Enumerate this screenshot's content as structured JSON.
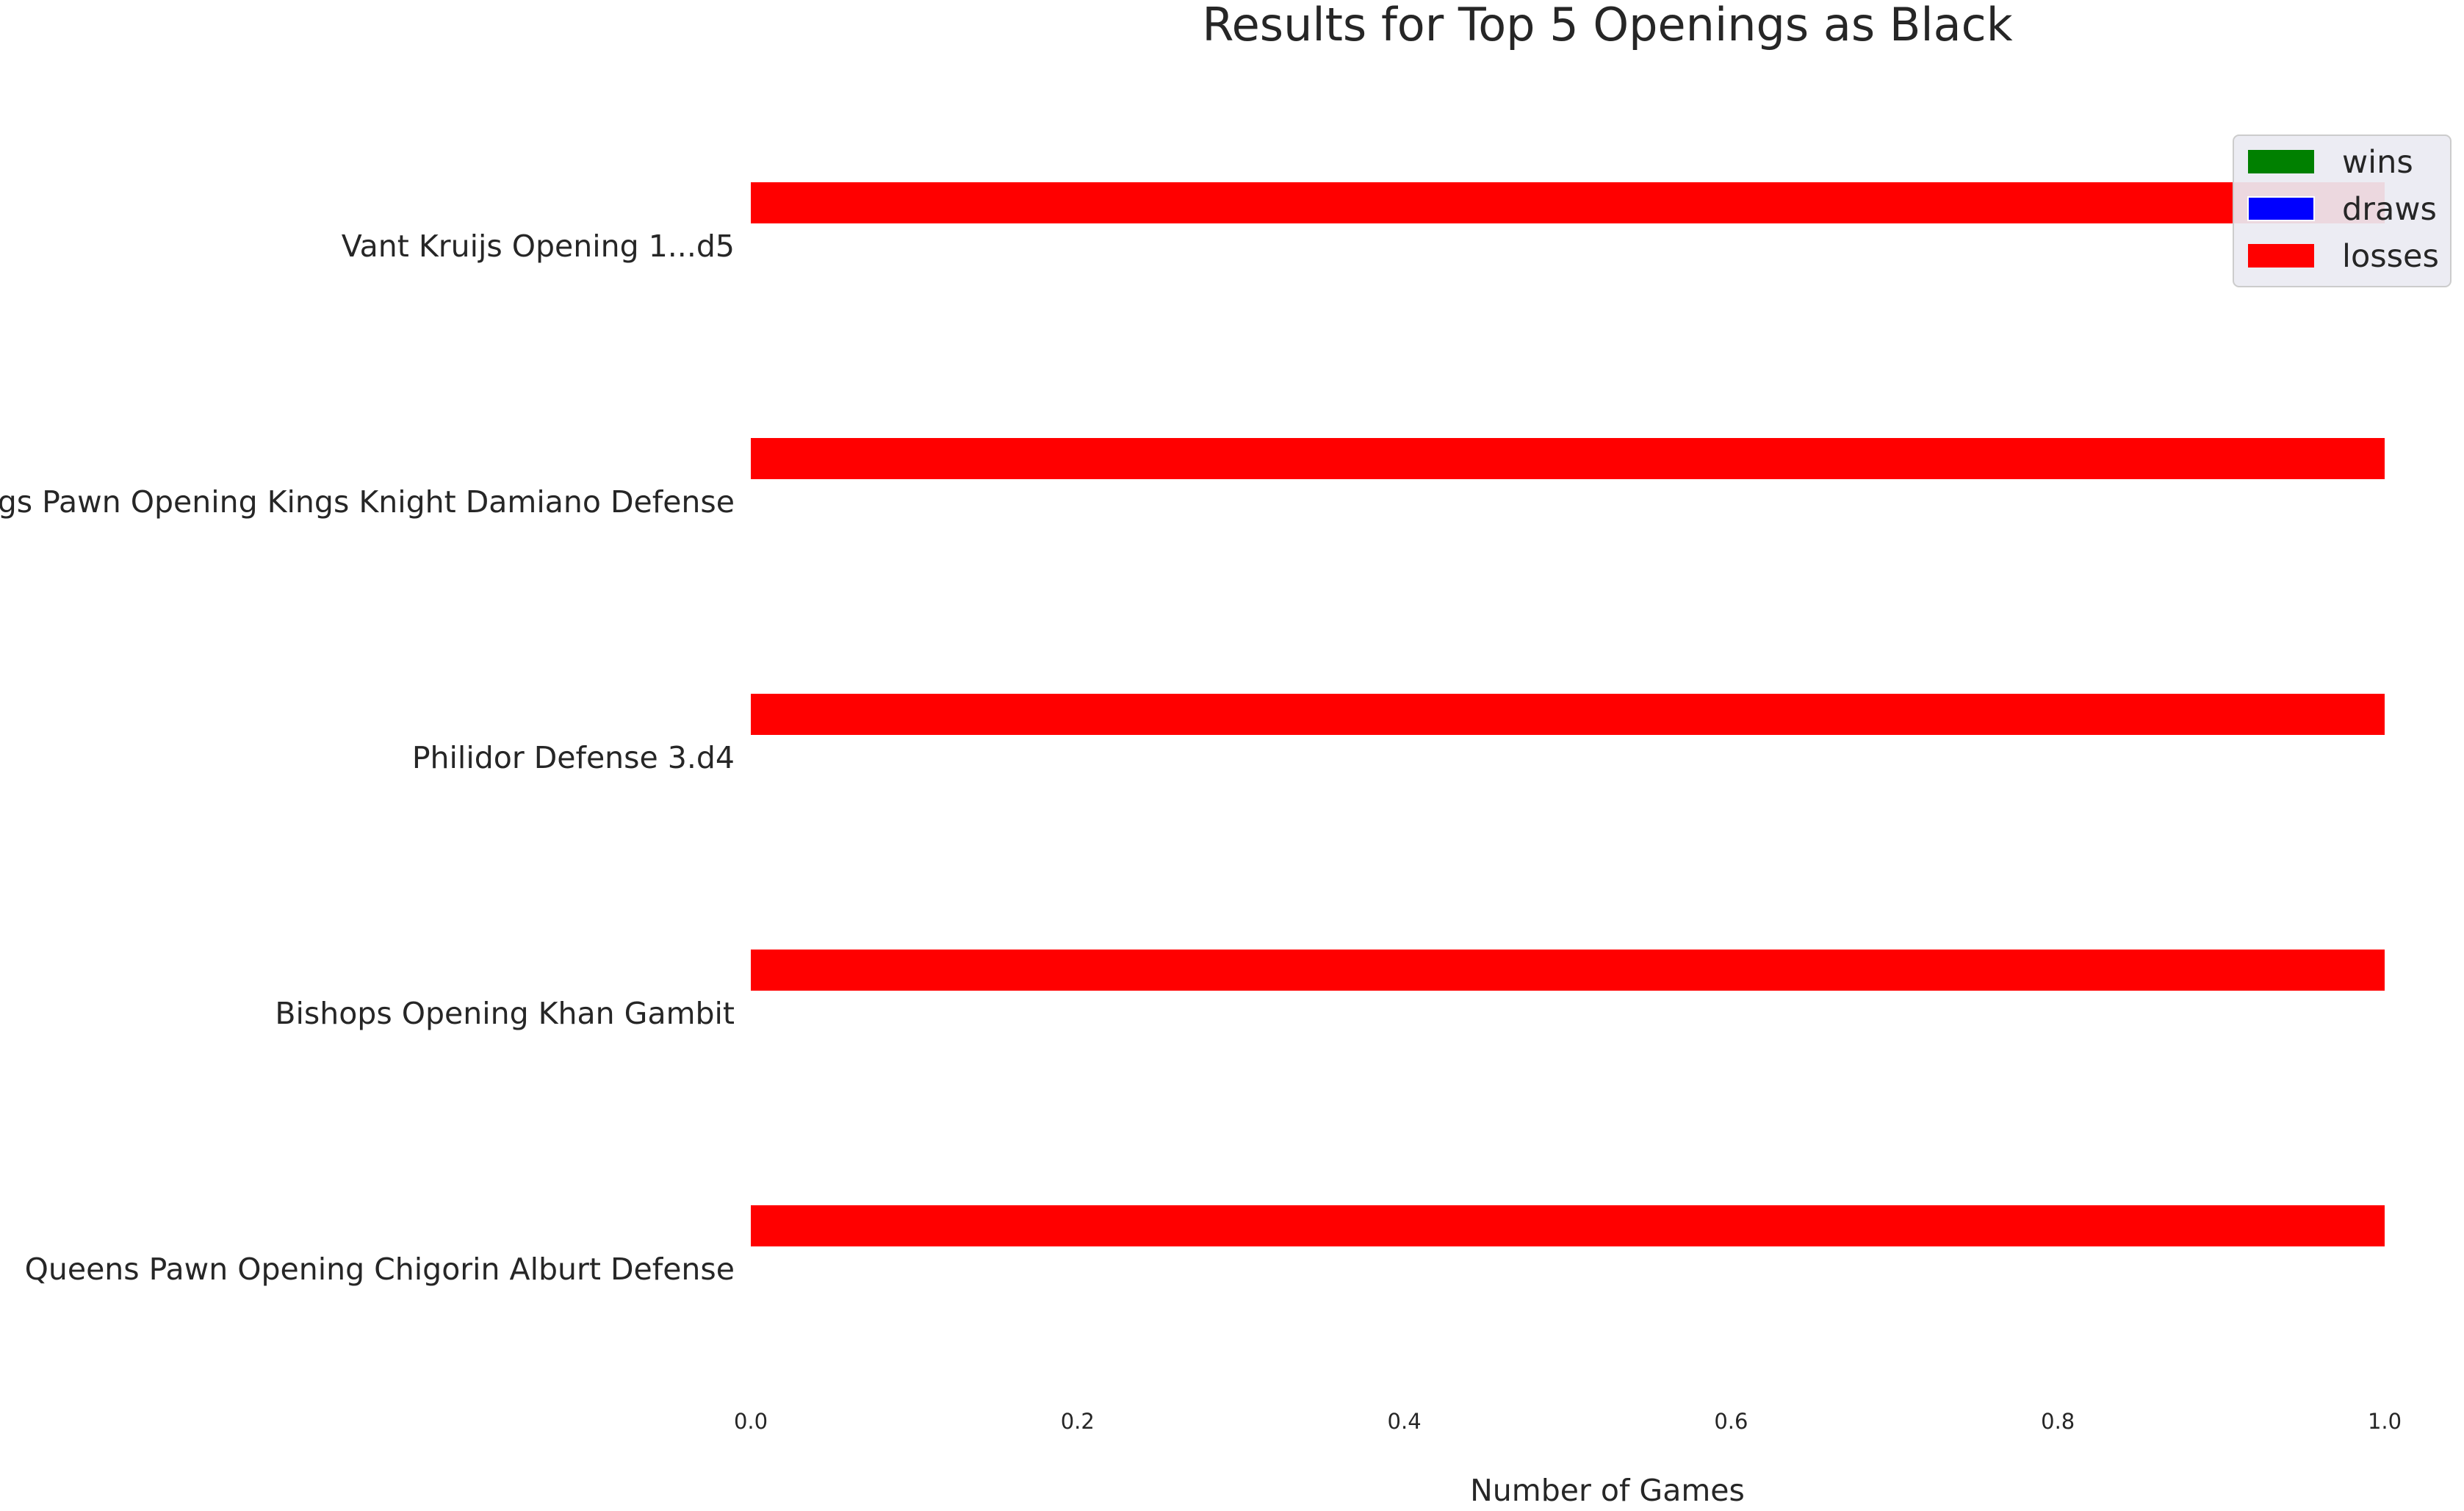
{
  "chart_data": {
    "type": "bar",
    "orientation": "horizontal",
    "title": "Results for Top 5 Openings as Black",
    "xlabel": "Number of Games",
    "ylabel": "",
    "categories": [
      "Vant Kruijs Opening 1...d5",
      "Kings Pawn Opening Kings Knight Damiano Defense",
      "Philidor Defense 3.d4",
      "Bishops Opening Khan Gambit",
      "Queens Pawn Opening Chigorin Alburt Defense"
    ],
    "series": [
      {
        "name": "wins",
        "color": "#008000",
        "values": [
          0,
          0,
          0,
          0,
          0
        ]
      },
      {
        "name": "draws",
        "color": "#0000ff",
        "values": [
          0,
          0,
          0,
          0,
          0
        ]
      },
      {
        "name": "losses",
        "color": "#ff0000",
        "values": [
          1,
          1,
          1,
          1,
          1
        ]
      }
    ],
    "xlim": [
      0.0,
      1.0
    ],
    "xticks": [
      "0.0",
      "0.2",
      "0.4",
      "0.6",
      "0.8",
      "1.0"
    ],
    "grid": false,
    "legend_position": "top-right"
  }
}
